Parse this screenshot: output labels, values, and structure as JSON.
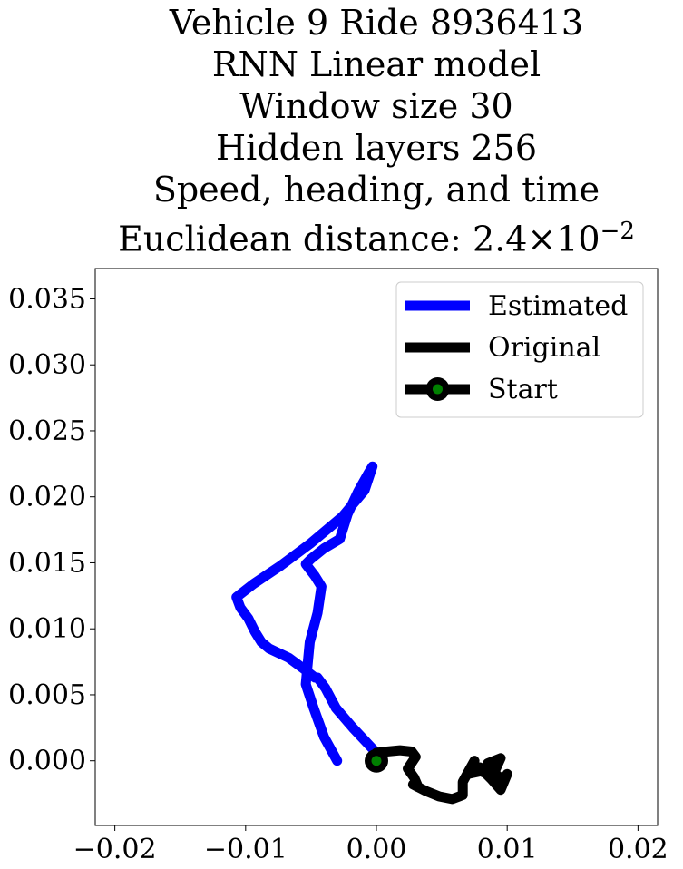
{
  "title_lines": [
    "Vehicle 9 Ride 8936413",
    "RNN Linear model",
    "Window size 30",
    "Hidden layers 256",
    "Speed, heading, and time"
  ],
  "title_last": {
    "prefix": "Euclidean distance: ",
    "mantissa": "2.4",
    "times": "×",
    "base": "10",
    "exponent": "−2"
  },
  "chart_data": {
    "type": "line",
    "xlim": [
      -0.0215,
      0.0215
    ],
    "ylim": [
      -0.0049,
      0.0373
    ],
    "xticks": [
      -0.02,
      -0.01,
      0.0,
      0.01,
      0.02
    ],
    "xtick_labels": [
      "−0.02",
      "−0.01",
      "0.00",
      "0.01",
      "0.02"
    ],
    "yticks": [
      0.0,
      0.005,
      0.01,
      0.015,
      0.02,
      0.025,
      0.03,
      0.035
    ],
    "ytick_labels": [
      "0.000",
      "0.005",
      "0.010",
      "0.015",
      "0.020",
      "0.025",
      "0.030",
      "0.035"
    ],
    "grid": false,
    "legend_position": "upper right",
    "legend": [
      {
        "label": "Estimated",
        "color": "#0000ff",
        "marker": "none"
      },
      {
        "label": "Original",
        "color": "#000000",
        "marker": "none"
      },
      {
        "label": "Start",
        "color": "#000000",
        "marker": "circle",
        "marker_face": "#008000"
      }
    ],
    "series": [
      {
        "name": "Estimated",
        "color": "#0000ff",
        "x": [
          0.0,
          -0.0018,
          -0.0031,
          -0.0039,
          -0.0045,
          -0.0047,
          -0.0056,
          -0.0067,
          -0.0082,
          -0.0088,
          -0.0093,
          -0.0098,
          -0.0104,
          -0.0107,
          -0.0094,
          -0.0073,
          -0.005,
          -0.0026,
          -0.0009,
          -0.0003,
          -0.0006,
          -0.0014,
          -0.0022,
          -0.0028,
          -0.004,
          -0.005,
          -0.0054,
          -0.0047,
          -0.0042,
          -0.0045,
          -0.0051,
          -0.0054,
          -0.0048,
          -0.004,
          -0.003
        ],
        "y": [
          0.0006,
          0.0025,
          0.004,
          0.0055,
          0.0063,
          0.0063,
          0.007,
          0.0078,
          0.0085,
          0.009,
          0.0098,
          0.0108,
          0.0116,
          0.0124,
          0.0134,
          0.0148,
          0.0165,
          0.0185,
          0.0205,
          0.0223,
          0.0218,
          0.0204,
          0.0187,
          0.0168,
          0.0161,
          0.0153,
          0.0149,
          0.014,
          0.0132,
          0.0112,
          0.009,
          0.0058,
          0.004,
          0.0018,
          0.0
        ]
      },
      {
        "name": "Original",
        "color": "#000000",
        "x": [
          0.0,
          0.0008,
          0.0018,
          0.0027,
          0.003,
          0.0024,
          0.0029,
          0.0032,
          0.0028,
          0.0038,
          0.0048,
          0.0058,
          0.0066,
          0.0066,
          0.0071,
          0.0075,
          0.007,
          0.008,
          0.0089,
          0.0085,
          0.0095,
          0.009,
          0.0097,
          0.01,
          0.0095,
          0.0088,
          0.0079
        ],
        "y": [
          0.0006,
          0.0007,
          0.0008,
          0.0007,
          0.0003,
          -0.0006,
          -0.0013,
          -0.002,
          -0.0018,
          -0.0023,
          -0.0027,
          -0.0029,
          -0.0026,
          -0.0016,
          -0.0007,
          0.0,
          -0.001,
          -0.0008,
          -0.0012,
          -0.0002,
          0.0002,
          -0.0009,
          -0.0015,
          -0.001,
          -0.0022,
          -0.0014,
          -0.0005
        ]
      }
    ],
    "start_point": {
      "x": 0.0,
      "y": 0.0,
      "face_color": "#008000",
      "edge_color": "#000000"
    }
  }
}
